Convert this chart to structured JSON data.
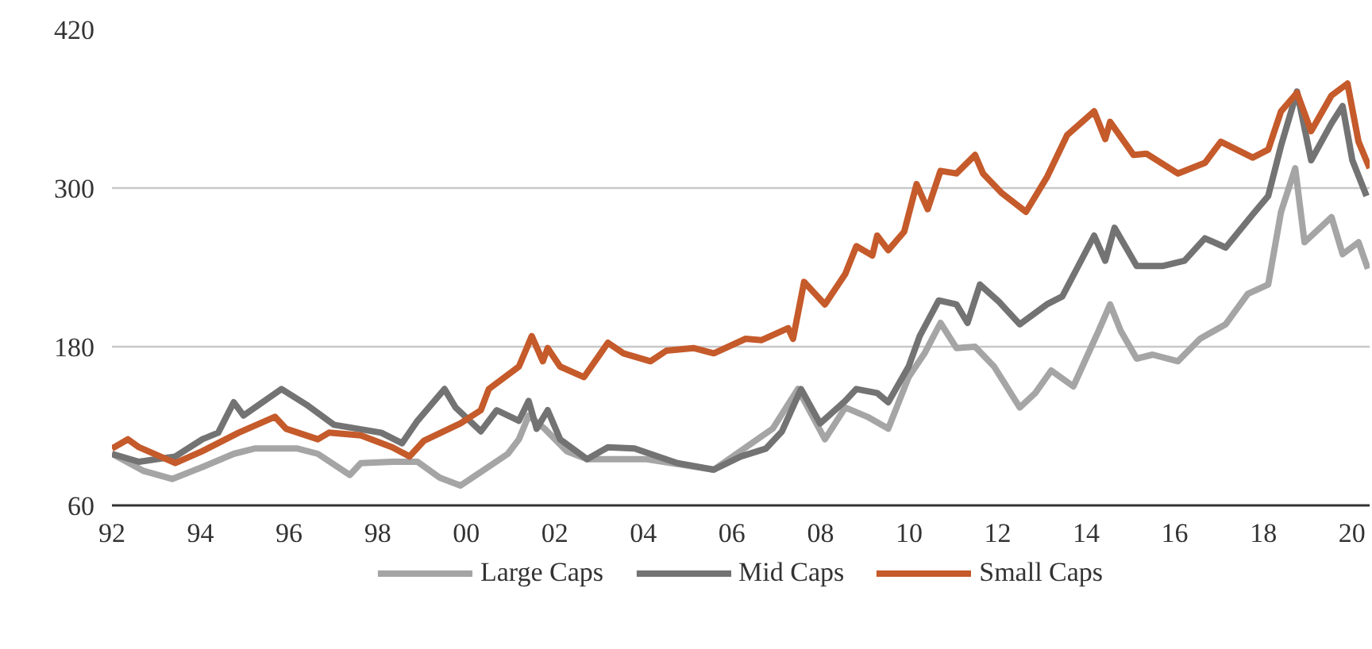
{
  "chart_data": {
    "type": "line",
    "xlim": [
      1992,
      2020.4
    ],
    "xticks": [
      {
        "value": 1992,
        "label": "92"
      },
      {
        "value": 1994,
        "label": "94"
      },
      {
        "value": 1996,
        "label": "96"
      },
      {
        "value": 1998,
        "label": "98"
      },
      {
        "value": 2000,
        "label": "00"
      },
      {
        "value": 2002,
        "label": "02"
      },
      {
        "value": 2004,
        "label": "04"
      },
      {
        "value": 2006,
        "label": "06"
      },
      {
        "value": 2008,
        "label": "08"
      },
      {
        "value": 2010,
        "label": "10"
      },
      {
        "value": 2012,
        "label": "12"
      },
      {
        "value": 2014,
        "label": "14"
      },
      {
        "value": 2016,
        "label": "16"
      },
      {
        "value": 2018,
        "label": "18"
      },
      {
        "value": 2020,
        "label": "20"
      }
    ],
    "ylim": [
      60,
      420
    ],
    "yticks": [
      60,
      180,
      300,
      420
    ],
    "grid": "y",
    "legend": "bottom",
    "line_style": "solid",
    "series": [
      {
        "name": "Large Caps",
        "color": "#a5a5a5",
        "x": [
          1992.0,
          1992.72,
          1993.36,
          1994.04,
          1994.75,
          1995.22,
          1996.19,
          1996.65,
          1997.37,
          1997.62,
          1998.33,
          1998.9,
          1999.4,
          1999.87,
          2000.23,
          2000.94,
          2001.19,
          2001.41,
          2001.77,
          2002.27,
          2002.73,
          2004.05,
          2005.59,
          2006.92,
          2007.49,
          2008.1,
          2008.56,
          2009.06,
          2009.53,
          2009.99,
          2010.35,
          2010.71,
          2011.07,
          2011.49,
          2011.92,
          2012.5,
          2012.85,
          2013.21,
          2013.71,
          2014.28,
          2014.54,
          2014.78,
          2015.14,
          2015.5,
          2016.07,
          2016.57,
          2017.15,
          2017.65,
          2018.11,
          2018.4,
          2018.72,
          2018.93,
          2019.54,
          2019.79,
          2020.15,
          2020.36
        ],
        "values": [
          99,
          86,
          80,
          89,
          99,
          103,
          103,
          99,
          83,
          92,
          93,
          93,
          81,
          75,
          83,
          99,
          110,
          128,
          118,
          101,
          95,
          95,
          87,
          118,
          148,
          110,
          134,
          127,
          118,
          157,
          175,
          198,
          179,
          180,
          165,
          134,
          145,
          162,
          150,
          192,
          212,
          192,
          171,
          174,
          169,
          186,
          197,
          220,
          227,
          282,
          315,
          259,
          278,
          250,
          259,
          239
        ]
      },
      {
        "name": "Mid Caps",
        "color": "#737373",
        "x": [
          1992.0,
          1992.61,
          1993.43,
          1994.04,
          1994.4,
          1994.75,
          1994.97,
          1995.83,
          1996.4,
          1997.01,
          1998.08,
          1998.55,
          1998.9,
          1999.51,
          1999.76,
          2000.33,
          2000.69,
          2001.19,
          2001.41,
          2001.59,
          2001.84,
          2002.12,
          2002.73,
          2003.2,
          2003.8,
          2004.77,
          2005.59,
          2006.2,
          2006.77,
          2007.13,
          2007.56,
          2007.99,
          2008.56,
          2008.81,
          2009.28,
          2009.53,
          2009.99,
          2010.24,
          2010.67,
          2011.07,
          2011.32,
          2011.6,
          2012.03,
          2012.5,
          2013.11,
          2013.46,
          2014.18,
          2014.43,
          2014.64,
          2015.14,
          2015.72,
          2016.22,
          2016.68,
          2017.15,
          2017.76,
          2018.11,
          2018.4,
          2018.76,
          2019.08,
          2019.54,
          2019.79,
          2020.01,
          2020.33
        ],
        "values": [
          99,
          93,
          97,
          110,
          115,
          138,
          128,
          148,
          136,
          121,
          115,
          107,
          124,
          148,
          134,
          116,
          132,
          124,
          139,
          118,
          132,
          110,
          95,
          104,
          103,
          92,
          87,
          97,
          103,
          116,
          148,
          122,
          139,
          148,
          145,
          138,
          165,
          188,
          215,
          212,
          198,
          227,
          214,
          197,
          212,
          218,
          264,
          245,
          270,
          241,
          241,
          245,
          262,
          255,
          280,
          294,
          332,
          373,
          321,
          349,
          362,
          321,
          294
        ]
      },
      {
        "name": "Small Caps",
        "color": "#c55a2b",
        "x": [
          1992.0,
          1992.36,
          1992.61,
          1993.43,
          1994.04,
          1994.86,
          1995.68,
          1995.93,
          1996.65,
          1996.9,
          1997.62,
          1998.33,
          1998.72,
          1999.05,
          1999.87,
          2000.33,
          2000.51,
          2001.19,
          2001.48,
          2001.73,
          2001.84,
          2002.12,
          2002.66,
          2003.2,
          2003.55,
          2004.16,
          2004.52,
          2005.13,
          2005.59,
          2006.31,
          2006.67,
          2007.27,
          2007.38,
          2007.63,
          2008.1,
          2008.56,
          2008.81,
          2009.17,
          2009.28,
          2009.53,
          2009.89,
          2010.17,
          2010.42,
          2010.71,
          2011.07,
          2011.49,
          2011.67,
          2012.1,
          2012.64,
          2013.11,
          2013.57,
          2014.18,
          2014.43,
          2014.54,
          2015.07,
          2015.36,
          2016.07,
          2016.68,
          2017.04,
          2017.76,
          2018.11,
          2018.4,
          2018.76,
          2019.08,
          2019.54,
          2019.9,
          2020.15,
          2020.4
        ],
        "values": [
          103,
          110,
          104,
          92,
          101,
          115,
          127,
          118,
          110,
          115,
          113,
          104,
          97,
          109,
          122,
          132,
          148,
          165,
          188,
          169,
          179,
          165,
          157,
          183,
          175,
          169,
          177,
          179,
          175,
          186,
          185,
          194,
          186,
          229,
          212,
          235,
          256,
          249,
          264,
          253,
          267,
          303,
          284,
          313,
          311,
          325,
          311,
          296,
          282,
          308,
          340,
          358,
          337,
          350,
          325,
          326,
          311,
          319,
          335,
          323,
          329,
          358,
          372,
          343,
          370,
          379,
          335,
          315
        ]
      }
    ]
  }
}
